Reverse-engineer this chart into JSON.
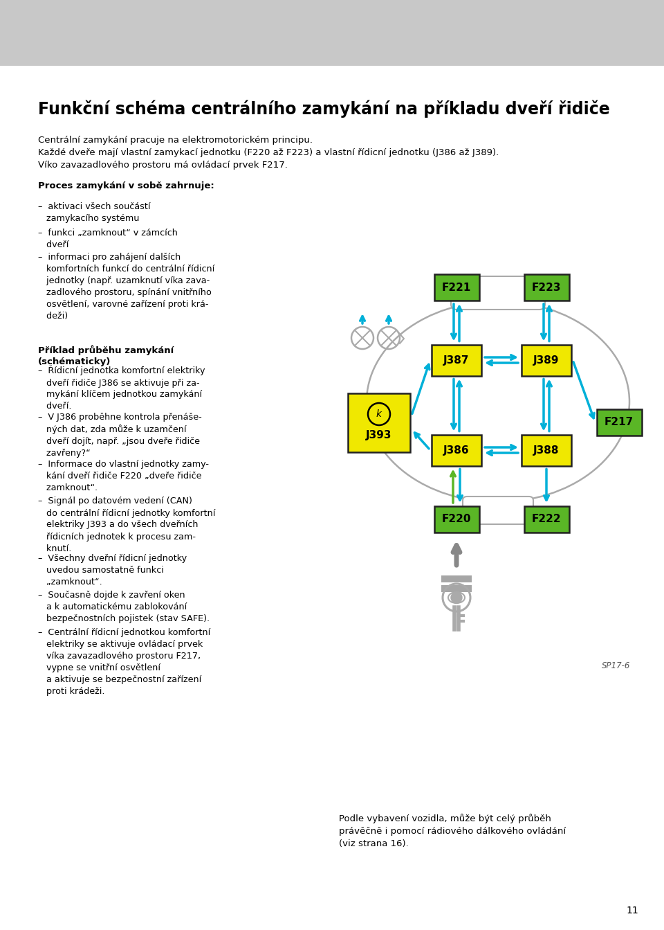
{
  "title": "Funkční schéma centrálního zamykání na příkladu dveří řidiče",
  "intro1": "Centrální zamykání pracuje na elektromotorickém principu.",
  "intro2": "Každé dveře mají vlastní zamykací jednotku (F220 až F223) a vlastní řídicní jednotku (J386 až J389).",
  "intro3": "Víko zavazadlového prostoru má ovládací prvek F217.",
  "bold_heading": "Proces zamykání v sobě zahrnuje:",
  "bullet1": "–  aktivaci všech součástí\n   zamykacího systému",
  "bullet2": "–  funkci „zamknout“ v zámcích\n   dveří",
  "bullet3": "–  informaci pro zahájení dalších\n   komfortních funkcí do centrální řídicní\n   jednotky (např. uzamknutí víka zava-\n   zadlového prostoru, spínání vnitřního\n   osvětlení, varovné zařízení proti krá-\n   deži)",
  "example_heading": "Příklad průběhu zamykání\n(schématicky)",
  "ex1": "–  Řídicní jednotka komfortní elektriky\n   dveří řidiče J386 se aktivuje při za-\n   mykání klíčem jednotkou zamykání\n   dveří.",
  "ex2": "–  V J386 proběhne kontrola přenáše-\n   ných dat, zda může k uzamčení\n   dveří dojít, např. „jsou dveře řidiče\n   zavřeny?“",
  "ex3": "–  Informace do vlastní jednotky zamy-\n   kání dveří řidiče F220 „dveře řidiče\n   zamknout“.",
  "ex4": "–  Signál po datovém vedení (CAN)\n   do centrální řídicní jednotky komfortní\n   elektriky J393 a do všech dveřních\n   řídicních jednotek k procesu zam-\n   knutí.",
  "ex5": "–  Všechny dveřní řídicní jednotky\n   uvedou samostatně funkci\n   „zamknout“.",
  "ex6": "–  Současně dojde k zavření oken\n   a k automatickému zablokování\n   bezpečnostních pojistek (stav SAFE).",
  "ex7": "–  Centrální řídicní jednotkou komfortní\n   elektriky se aktivuje ovládací prvek\n   víka zavazadlového prostoru F217,\n   vypne se vnitřní osvětlení\n   a aktivuje se bezpečnostní zařízení\n   proti krádeži.",
  "footer": "Podle vybavení vozidla, může být celý průběh\nprávěčně i pomocí rádiového dálkového ovládání\n(viz strana 16).",
  "sp_label": "SP17-6",
  "page_num": "11"
}
